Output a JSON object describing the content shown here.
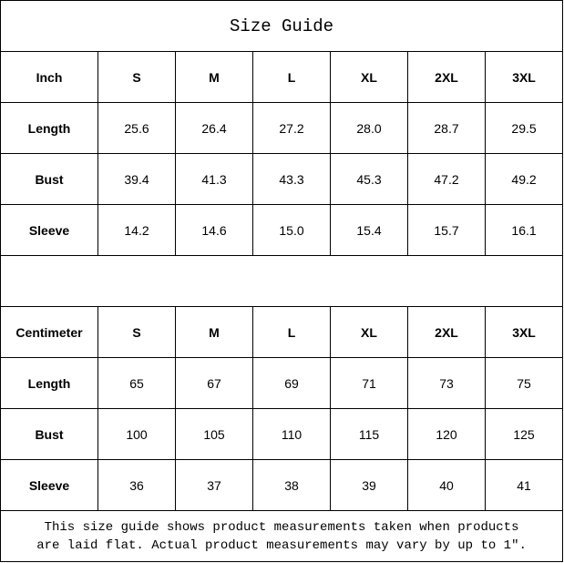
{
  "title": "Size Guide",
  "sizes": [
    "S",
    "M",
    "L",
    "XL",
    "2XL",
    "3XL"
  ],
  "inch": {
    "unit_label": "Inch",
    "rows": [
      {
        "label": "Length",
        "values": [
          "25.6",
          "26.4",
          "27.2",
          "28.0",
          "28.7",
          "29.5"
        ]
      },
      {
        "label": "Bust",
        "values": [
          "39.4",
          "41.3",
          "43.3",
          "45.3",
          "47.2",
          "49.2"
        ]
      },
      {
        "label": "Sleeve",
        "values": [
          "14.2",
          "14.6",
          "15.0",
          "15.4",
          "15.7",
          "16.1"
        ]
      }
    ]
  },
  "centimeter": {
    "unit_label": "Centimeter",
    "rows": [
      {
        "label": "Length",
        "values": [
          "65",
          "67",
          "69",
          "71",
          "73",
          "75"
        ]
      },
      {
        "label": "Bust",
        "values": [
          "100",
          "105",
          "110",
          "115",
          "120",
          "125"
        ]
      },
      {
        "label": "Sleeve",
        "values": [
          "36",
          "37",
          "38",
          "39",
          "40",
          "41"
        ]
      }
    ]
  },
  "footer": {
    "line1": "This size guide shows product measurements taken when products",
    "line2": "are laid flat. Actual product measurements may vary by up to 1″."
  }
}
